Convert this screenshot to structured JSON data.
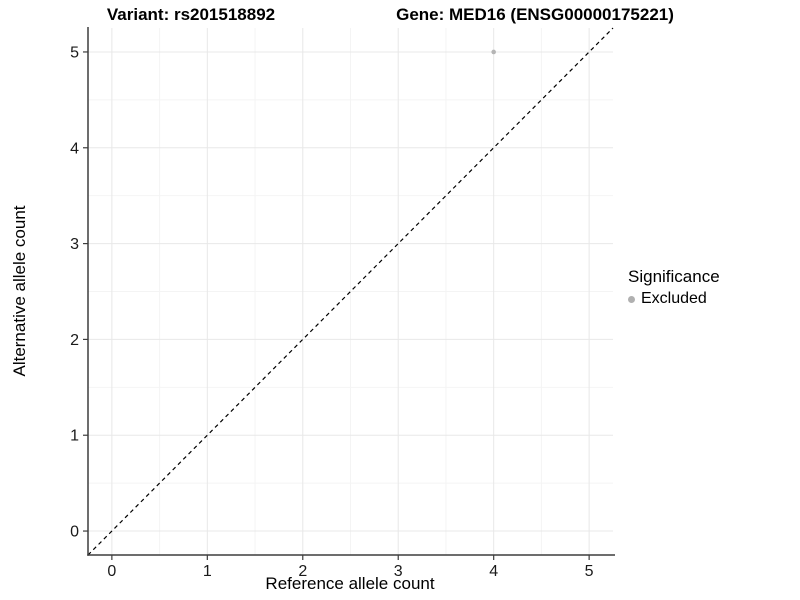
{
  "chart_data": {
    "type": "scatter",
    "title_left": "Variant: rs201518892",
    "title_right": "Gene: MED16 (ENSG00000175221)",
    "xlabel": "Reference allele count",
    "ylabel": "Alternative allele count",
    "xlim": [
      -0.25,
      5.25
    ],
    "ylim": [
      -0.25,
      5.25
    ],
    "xticks": [
      0,
      1,
      2,
      3,
      4,
      5
    ],
    "yticks": [
      0,
      1,
      2,
      3,
      4,
      5
    ],
    "minor_tick_step": 0.5,
    "grid": "major+minor",
    "series": [
      {
        "name": "Excluded",
        "color": "#b5b5b5",
        "points": [
          {
            "x": 4,
            "y": 5
          }
        ]
      }
    ],
    "reference_line": {
      "equation": "y = x",
      "style": "dashed",
      "color": "#000000",
      "from": {
        "x": -0.25,
        "y": -0.25
      },
      "to": {
        "x": 5.25,
        "y": 5.25
      }
    },
    "legend": {
      "title": "Significance",
      "position": "right",
      "items": [
        {
          "label": "Excluded",
          "color": "#b0b0b0"
        }
      ]
    },
    "colors": {
      "background": "#ffffff",
      "grid_major": "#e8e8e8",
      "grid_minor": "#f4f4f4",
      "axis_line": "#3d3d3d",
      "tick_label": "#1a1a1a"
    }
  }
}
